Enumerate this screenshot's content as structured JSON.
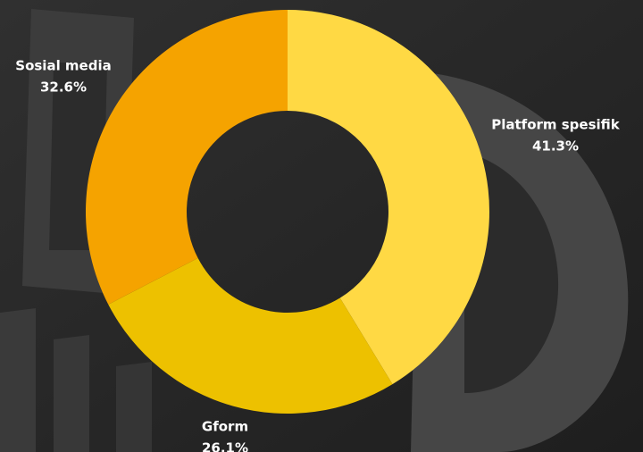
{
  "chart_data": {
    "type": "pie",
    "donut": true,
    "categories": [
      "Platform spesifik",
      "Gform",
      "Sosial media"
    ],
    "values": [
      41.3,
      26.1,
      32.6
    ],
    "value_labels": [
      "41.3%",
      "26.1%",
      "32.6%"
    ],
    "colors": [
      "#FFD944",
      "#EDC100",
      "#F5A300"
    ]
  }
}
